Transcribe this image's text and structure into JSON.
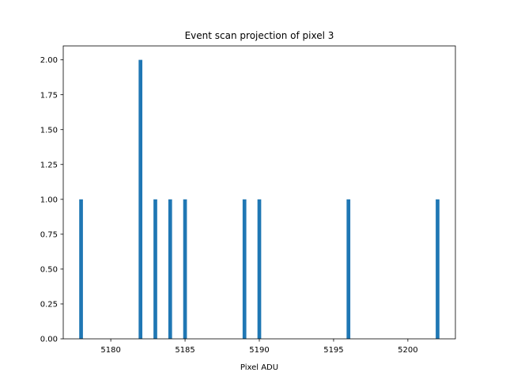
{
  "chart_data": {
    "type": "bar",
    "title": "Event scan projection of pixel 3",
    "xlabel": "Pixel ADU",
    "ylabel": "",
    "bar_color": "#1f77b4",
    "bar_width": 0.25,
    "xlim": [
      5176.8,
      5203.2
    ],
    "ylim": [
      0,
      2.1
    ],
    "x_ticks": [
      5180,
      5185,
      5190,
      5195,
      5200
    ],
    "y_ticks": [
      0.0,
      0.25,
      0.5,
      0.75,
      1.0,
      1.25,
      1.5,
      1.75,
      2.0
    ],
    "x_tick_labels": [
      "5180",
      "5185",
      "5190",
      "5195",
      "5200"
    ],
    "y_tick_labels": [
      "0.00",
      "0.25",
      "0.50",
      "0.75",
      "1.00",
      "1.25",
      "1.50",
      "1.75",
      "2.00"
    ],
    "x": [
      5178,
      5182,
      5183,
      5184,
      5185,
      5189,
      5190,
      5196,
      5202
    ],
    "values": [
      1,
      2,
      1,
      1,
      1,
      1,
      1,
      1,
      1
    ],
    "grid": false
  }
}
